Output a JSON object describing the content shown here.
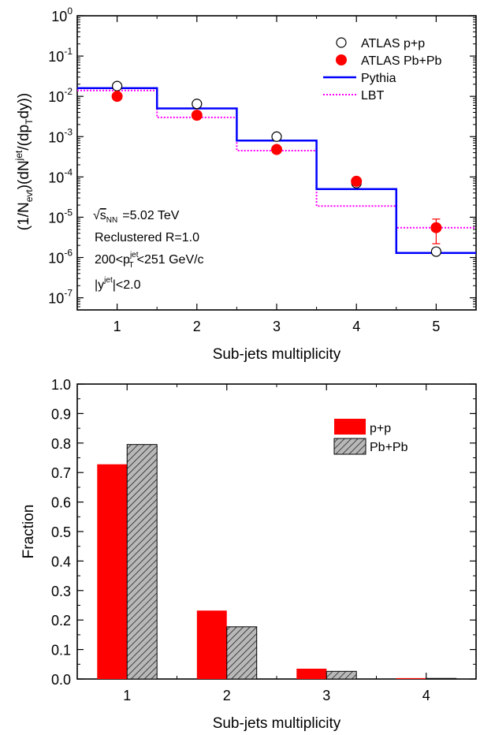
{
  "chart_data": [
    {
      "type": "line",
      "xlabel": "Sub-jets multiplicity",
      "ylabel_parts": {
        "a": "(1/N",
        "a_sub": "evt",
        "b": ")(dN",
        "b_sup": "jet",
        "c": "/(dp",
        "c_sub": "T",
        "d": "dy))"
      },
      "yscale": "log",
      "xlim": [
        0.5,
        5.5
      ],
      "ylim": [
        5e-08,
        1
      ],
      "x_ticks": [
        "1",
        "2",
        "3",
        "4",
        "5"
      ],
      "y_ticks": [
        {
          "base": "10",
          "exp": "0",
          "value": 1
        },
        {
          "base": "10",
          "exp": "-1",
          "value": 0.1
        },
        {
          "base": "10",
          "exp": "-2",
          "value": 0.01
        },
        {
          "base": "10",
          "exp": "-3",
          "value": 0.001
        },
        {
          "base": "10",
          "exp": "-4",
          "value": 0.0001
        },
        {
          "base": "10",
          "exp": "-5",
          "value": 1e-05
        },
        {
          "base": "10",
          "exp": "-6",
          "value": 1e-06
        },
        {
          "base": "10",
          "exp": "-7",
          "value": 1e-07
        }
      ],
      "legend_position": "top-right",
      "series": [
        {
          "name": "ATLAS p+p",
          "kind": "scatter-open",
          "color": "#000000",
          "x": [
            1,
            2,
            3,
            4,
            5
          ],
          "y": [
            0.018,
            0.0065,
            0.001,
            7e-05,
            1.4e-06
          ]
        },
        {
          "name": "ATLAS Pb+Pb",
          "kind": "scatter-filled",
          "color": "#ff0000",
          "x": [
            1,
            2,
            3,
            4,
            5
          ],
          "y": [
            0.01,
            0.0034,
            0.00048,
            7.8e-05,
            5.5e-06
          ],
          "yerr_low": [
            0,
            0,
            0,
            0,
            3.3e-06
          ],
          "yerr_high": [
            0,
            0,
            0,
            0,
            3.5e-06
          ]
        },
        {
          "name": "Pythia",
          "kind": "step-solid",
          "color": "#0000ff",
          "x": [
            1,
            2,
            3,
            4,
            5
          ],
          "y": [
            0.016,
            0.005,
            0.0008,
            5e-05,
            1.3e-06
          ]
        },
        {
          "name": "LBT",
          "kind": "step-dotted",
          "color": "#ff00ff",
          "x": [
            1,
            2,
            3,
            4,
            5
          ],
          "y": [
            0.014,
            0.003,
            0.00045,
            1.9e-05,
            5.5e-06
          ]
        }
      ],
      "annotations": {
        "sqrt_s": {
          "root": "√",
          "s": "s",
          "sub": "NN",
          "rest": "=5.02 TeV"
        },
        "recluster": "Reclustered  R=1.0",
        "pt_range": {
          "pre": "200<p",
          "sub": "T",
          "sup": "jet",
          "post": "<251 GeV/c"
        },
        "rapidity": {
          "pre": "|y",
          "sup": "jet",
          "post": "|<2.0"
        }
      }
    },
    {
      "type": "bar",
      "xlabel": "Sub-jets multiplicity",
      "ylabel": "Fraction",
      "xlim": [
        0.5,
        4.5
      ],
      "ylim": [
        0,
        1.0
      ],
      "categories": [
        "1",
        "2",
        "3",
        "4"
      ],
      "y_ticks": [
        "0.0",
        "0.1",
        "0.2",
        "0.3",
        "0.4",
        "0.5",
        "0.6",
        "0.7",
        "0.8",
        "0.9",
        "1.0"
      ],
      "legend_position": "top-right",
      "series": [
        {
          "name": "p+p",
          "color": "#ff0000",
          "pattern": "solid",
          "values": [
            0.728,
            0.232,
            0.035,
            0.003
          ]
        },
        {
          "name": "Pb+Pb",
          "color": "#b0b0b0",
          "pattern": "hatched",
          "values": [
            0.795,
            0.177,
            0.026,
            0.002
          ]
        }
      ]
    }
  ]
}
